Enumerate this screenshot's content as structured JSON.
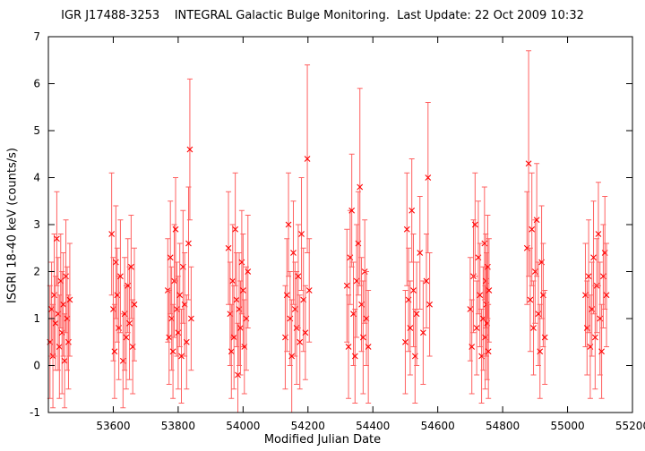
{
  "chart_data": {
    "type": "scatter",
    "title": "IGR J17488-3253    INTEGRAL Galactic Bulge Monitoring.  Last Update: 22 Oct 2009 10:32",
    "xlabel": "Modified Julian Date",
    "ylabel": "ISGRI 18-40 keV (counts/s)",
    "xlim": [
      53400,
      55200
    ],
    "ylim": [
      -1,
      7
    ],
    "x_ticks": [
      53600,
      53800,
      54000,
      54200,
      54400,
      54600,
      54800,
      55000,
      55200
    ],
    "y_ticks": [
      -1,
      0,
      1,
      2,
      3,
      4,
      5,
      6,
      7
    ],
    "grid": false,
    "legend": "none",
    "marker": "cross",
    "color": "#ff0000",
    "errorbar_color": "#ff6060",
    "series": [
      {
        "points": [
          {
            "x": 53405,
            "y": 0.5,
            "err": 1.2
          },
          {
            "x": 53410,
            "y": 1.2,
            "err": 1.0
          },
          {
            "x": 53414,
            "y": 0.2,
            "err": 1.1
          },
          {
            "x": 53418,
            "y": 1.5,
            "err": 1.3
          },
          {
            "x": 53422,
            "y": 0.9,
            "err": 1.0
          },
          {
            "x": 53426,
            "y": 2.7,
            "err": 1.0
          },
          {
            "x": 53430,
            "y": 1.1,
            "err": 1.2
          },
          {
            "x": 53434,
            "y": 0.4,
            "err": 1.1
          },
          {
            "x": 53438,
            "y": 1.8,
            "err": 1.0
          },
          {
            "x": 53442,
            "y": 0.7,
            "err": 1.3
          },
          {
            "x": 53446,
            "y": 1.3,
            "err": 1.1
          },
          {
            "x": 53450,
            "y": 0.1,
            "err": 1.0
          },
          {
            "x": 53454,
            "y": 1.9,
            "err": 1.2
          },
          {
            "x": 53458,
            "y": 1.0,
            "err": 1.1
          },
          {
            "x": 53462,
            "y": 0.5,
            "err": 1.0
          },
          {
            "x": 53466,
            "y": 1.4,
            "err": 1.2
          },
          {
            "x": 53595,
            "y": 2.8,
            "err": 1.3
          },
          {
            "x": 53600,
            "y": 1.2,
            "err": 1.1
          },
          {
            "x": 53604,
            "y": 0.3,
            "err": 1.0
          },
          {
            "x": 53608,
            "y": 2.2,
            "err": 1.2
          },
          {
            "x": 53612,
            "y": 1.5,
            "err": 1.0
          },
          {
            "x": 53617,
            "y": 0.8,
            "err": 1.1
          },
          {
            "x": 53622,
            "y": 1.9,
            "err": 1.2
          },
          {
            "x": 53630,
            "y": 0.1,
            "err": 1.0
          },
          {
            "x": 53635,
            "y": 1.1,
            "err": 1.2
          },
          {
            "x": 53640,
            "y": 0.6,
            "err": 1.1
          },
          {
            "x": 53645,
            "y": 1.7,
            "err": 1.0
          },
          {
            "x": 53650,
            "y": 0.9,
            "err": 1.2
          },
          {
            "x": 53655,
            "y": 2.1,
            "err": 1.1
          },
          {
            "x": 53660,
            "y": 0.4,
            "err": 1.0
          },
          {
            "x": 53665,
            "y": 1.3,
            "err": 1.2
          },
          {
            "x": 53768,
            "y": 1.6,
            "err": 1.1
          },
          {
            "x": 53772,
            "y": 0.6,
            "err": 1.0
          },
          {
            "x": 53776,
            "y": 2.3,
            "err": 1.2
          },
          {
            "x": 53780,
            "y": 1.0,
            "err": 1.1
          },
          {
            "x": 53784,
            "y": 0.3,
            "err": 1.0
          },
          {
            "x": 53788,
            "y": 1.8,
            "err": 1.2
          },
          {
            "x": 53792,
            "y": 2.9,
            "err": 1.1
          },
          {
            "x": 53796,
            "y": 1.2,
            "err": 1.0
          },
          {
            "x": 53800,
            "y": 0.7,
            "err": 1.2
          },
          {
            "x": 53805,
            "y": 1.5,
            "err": 1.1
          },
          {
            "x": 53810,
            "y": 0.2,
            "err": 1.0
          },
          {
            "x": 53815,
            "y": 2.1,
            "err": 1.2
          },
          {
            "x": 53820,
            "y": 1.3,
            "err": 1.1
          },
          {
            "x": 53826,
            "y": 0.5,
            "err": 1.0
          },
          {
            "x": 53832,
            "y": 2.6,
            "err": 1.2
          },
          {
            "x": 53836,
            "y": 4.6,
            "err": 1.5
          },
          {
            "x": 53840,
            "y": 1.0,
            "err": 1.1
          },
          {
            "x": 53955,
            "y": 2.5,
            "err": 1.2
          },
          {
            "x": 53960,
            "y": 1.1,
            "err": 1.1
          },
          {
            "x": 53964,
            "y": 0.3,
            "err": 1.0
          },
          {
            "x": 53968,
            "y": 1.8,
            "err": 1.2
          },
          {
            "x": 53972,
            "y": 0.6,
            "err": 1.1
          },
          {
            "x": 53976,
            "y": 2.9,
            "err": 1.2
          },
          {
            "x": 53980,
            "y": 1.4,
            "err": 1.0
          },
          {
            "x": 53984,
            "y": -0.2,
            "err": 1.1
          },
          {
            "x": 53988,
            "y": 1.2,
            "err": 1.2
          },
          {
            "x": 53992,
            "y": 0.8,
            "err": 1.0
          },
          {
            "x": 53996,
            "y": 2.2,
            "err": 1.1
          },
          {
            "x": 54000,
            "y": 1.6,
            "err": 1.2
          },
          {
            "x": 54004,
            "y": 0.4,
            "err": 1.0
          },
          {
            "x": 54010,
            "y": 1.0,
            "err": 1.1
          },
          {
            "x": 54015,
            "y": 2.0,
            "err": 1.2
          },
          {
            "x": 54130,
            "y": 0.6,
            "err": 1.1
          },
          {
            "x": 54135,
            "y": 1.5,
            "err": 1.2
          },
          {
            "x": 54140,
            "y": 3.0,
            "err": 1.1
          },
          {
            "x": 54145,
            "y": 1.0,
            "err": 1.0
          },
          {
            "x": 54150,
            "y": 0.2,
            "err": 1.2
          },
          {
            "x": 54155,
            "y": 2.4,
            "err": 1.1
          },
          {
            "x": 54160,
            "y": 1.2,
            "err": 1.0
          },
          {
            "x": 54165,
            "y": 0.8,
            "err": 1.2
          },
          {
            "x": 54170,
            "y": 1.9,
            "err": 1.1
          },
          {
            "x": 54175,
            "y": 0.5,
            "err": 1.0
          },
          {
            "x": 54180,
            "y": 2.8,
            "err": 1.2
          },
          {
            "x": 54186,
            "y": 1.4,
            "err": 1.1
          },
          {
            "x": 54192,
            "y": 0.7,
            "err": 1.0
          },
          {
            "x": 54198,
            "y": 4.4,
            "err": 2.0
          },
          {
            "x": 54204,
            "y": 1.6,
            "err": 1.1
          },
          {
            "x": 54320,
            "y": 1.7,
            "err": 1.2
          },
          {
            "x": 54325,
            "y": 0.4,
            "err": 1.1
          },
          {
            "x": 54330,
            "y": 2.3,
            "err": 1.0
          },
          {
            "x": 54335,
            "y": 3.3,
            "err": 1.2
          },
          {
            "x": 54340,
            "y": 1.1,
            "err": 1.1
          },
          {
            "x": 54345,
            "y": 0.2,
            "err": 1.0
          },
          {
            "x": 54350,
            "y": 1.8,
            "err": 1.2
          },
          {
            "x": 54355,
            "y": 2.6,
            "err": 1.1
          },
          {
            "x": 54360,
            "y": 3.8,
            "err": 2.1
          },
          {
            "x": 54365,
            "y": 1.3,
            "err": 1.0
          },
          {
            "x": 54370,
            "y": 0.6,
            "err": 1.2
          },
          {
            "x": 54375,
            "y": 2.0,
            "err": 1.1
          },
          {
            "x": 54380,
            "y": 1.0,
            "err": 1.0
          },
          {
            "x": 54386,
            "y": 0.4,
            "err": 1.2
          },
          {
            "x": 54500,
            "y": 0.5,
            "err": 1.1
          },
          {
            "x": 54505,
            "y": 2.9,
            "err": 1.2
          },
          {
            "x": 54510,
            "y": 1.4,
            "err": 1.1
          },
          {
            "x": 54515,
            "y": 0.8,
            "err": 1.0
          },
          {
            "x": 54520,
            "y": 3.3,
            "err": 1.1
          },
          {
            "x": 54525,
            "y": 1.6,
            "err": 1.2
          },
          {
            "x": 54530,
            "y": 0.2,
            "err": 1.0
          },
          {
            "x": 54535,
            "y": 1.1,
            "err": 1.1
          },
          {
            "x": 54545,
            "y": 2.4,
            "err": 1.2
          },
          {
            "x": 54555,
            "y": 0.7,
            "err": 1.1
          },
          {
            "x": 54565,
            "y": 1.8,
            "err": 1.0
          },
          {
            "x": 54570,
            "y": 4.0,
            "err": 1.6
          },
          {
            "x": 54575,
            "y": 1.3,
            "err": 1.1
          },
          {
            "x": 54700,
            "y": 1.2,
            "err": 1.1
          },
          {
            "x": 54705,
            "y": 0.4,
            "err": 1.0
          },
          {
            "x": 54710,
            "y": 1.9,
            "err": 1.2
          },
          {
            "x": 54715,
            "y": 3.0,
            "err": 1.1
          },
          {
            "x": 54720,
            "y": 0.8,
            "err": 1.0
          },
          {
            "x": 54725,
            "y": 2.3,
            "err": 1.2
          },
          {
            "x": 54730,
            "y": 1.5,
            "err": 1.1
          },
          {
            "x": 54735,
            "y": 0.2,
            "err": 1.0
          },
          {
            "x": 54740,
            "y": 1.0,
            "err": 1.1
          },
          {
            "x": 54744,
            "y": 2.6,
            "err": 1.2
          },
          {
            "x": 54746,
            "y": 0.6,
            "err": 1.1
          },
          {
            "x": 54748,
            "y": 1.8,
            "err": 1.0
          },
          {
            "x": 54750,
            "y": 1.3,
            "err": 1.1
          },
          {
            "x": 54752,
            "y": 0.9,
            "err": 1.2
          },
          {
            "x": 54754,
            "y": 2.1,
            "err": 1.1
          },
          {
            "x": 54756,
            "y": 0.3,
            "err": 1.0
          },
          {
            "x": 54758,
            "y": 1.6,
            "err": 1.1
          },
          {
            "x": 54875,
            "y": 2.5,
            "err": 1.2
          },
          {
            "x": 54880,
            "y": 4.3,
            "err": 2.4
          },
          {
            "x": 54885,
            "y": 1.4,
            "err": 1.1
          },
          {
            "x": 54890,
            "y": 2.9,
            "err": 1.2
          },
          {
            "x": 54895,
            "y": 0.8,
            "err": 1.0
          },
          {
            "x": 54900,
            "y": 2.0,
            "err": 1.1
          },
          {
            "x": 54905,
            "y": 3.1,
            "err": 1.2
          },
          {
            "x": 54910,
            "y": 1.1,
            "err": 1.1
          },
          {
            "x": 54915,
            "y": 0.3,
            "err": 1.0
          },
          {
            "x": 54920,
            "y": 2.2,
            "err": 1.2
          },
          {
            "x": 54925,
            "y": 1.5,
            "err": 1.1
          },
          {
            "x": 54930,
            "y": 0.6,
            "err": 1.0
          },
          {
            "x": 55055,
            "y": 1.5,
            "err": 1.1
          },
          {
            "x": 55060,
            "y": 0.8,
            "err": 1.0
          },
          {
            "x": 55065,
            "y": 1.9,
            "err": 1.2
          },
          {
            "x": 55070,
            "y": 0.4,
            "err": 1.1
          },
          {
            "x": 55075,
            "y": 1.2,
            "err": 1.0
          },
          {
            "x": 55080,
            "y": 2.3,
            "err": 1.2
          },
          {
            "x": 55085,
            "y": 0.6,
            "err": 1.1
          },
          {
            "x": 55090,
            "y": 1.7,
            "err": 1.0
          },
          {
            "x": 55095,
            "y": 2.8,
            "err": 1.1
          },
          {
            "x": 55100,
            "y": 1.0,
            "err": 1.2
          },
          {
            "x": 55105,
            "y": 0.3,
            "err": 1.0
          },
          {
            "x": 55110,
            "y": 1.9,
            "err": 1.1
          },
          {
            "x": 55115,
            "y": 2.4,
            "err": 1.2
          },
          {
            "x": 55120,
            "y": 1.5,
            "err": 1.1
          }
        ]
      }
    ]
  }
}
